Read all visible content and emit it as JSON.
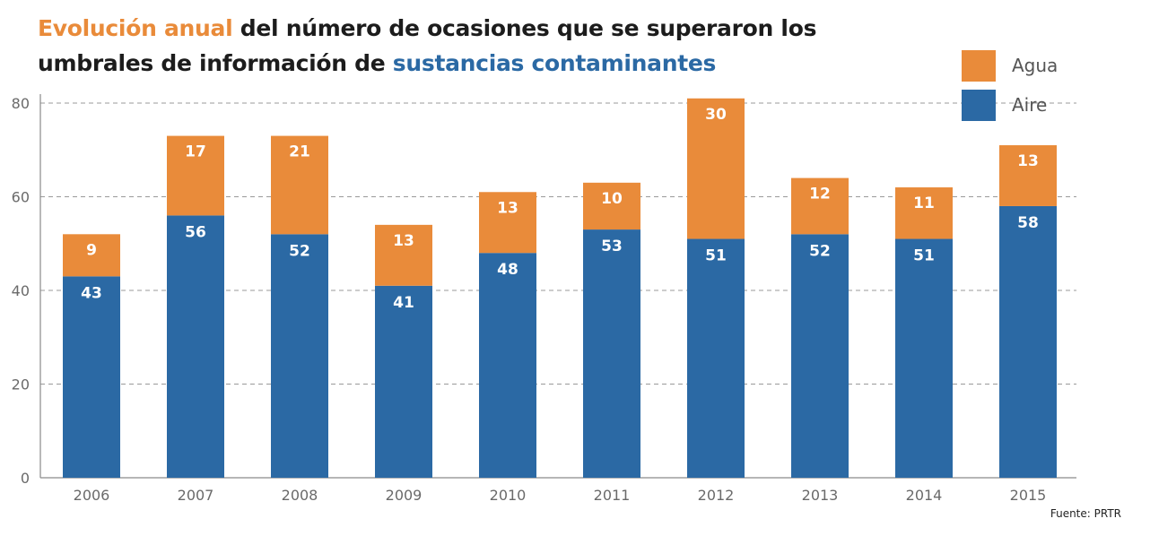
{
  "title": {
    "part1": "Evolución anual",
    "part2": " del número de ocasiones que se superaron los",
    "part3": "umbrales de información de ",
    "part4": "sustancias contaminantes"
  },
  "source": "Fuente: PRTR",
  "colors": {
    "agua": "#e98b3a",
    "aire": "#2b69a4",
    "grid": "#9a9a9a",
    "axis": "#8a8a8a",
    "tick": "#6a6a6a"
  },
  "chart_data": {
    "type": "bar",
    "stacked": true,
    "categories": [
      "2006",
      "2007",
      "2008",
      "2009",
      "2010",
      "2011",
      "2012",
      "2013",
      "2014",
      "2015"
    ],
    "series": [
      {
        "name": "Aire",
        "values": [
          43,
          56,
          52,
          41,
          48,
          53,
          51,
          52,
          51,
          58
        ]
      },
      {
        "name": "Agua",
        "values": [
          9,
          17,
          21,
          13,
          13,
          10,
          30,
          12,
          11,
          13
        ]
      }
    ],
    "ylim": [
      0,
      80
    ],
    "yticks": [
      0,
      20,
      40,
      60,
      80
    ],
    "grid": true,
    "legend_position": "top-right",
    "legend_order": [
      "Agua",
      "Aire"
    ],
    "xlabel": "",
    "ylabel": ""
  }
}
